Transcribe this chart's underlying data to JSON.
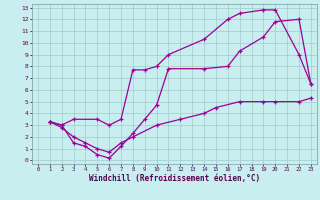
{
  "xlabel": "Windchill (Refroidissement éolien,°C)",
  "bg_color": "#c8eef0",
  "grid_color": "#a0cccc",
  "line_color": "#990099",
  "xlim": [
    -0.5,
    23.5
  ],
  "ylim": [
    -0.3,
    13.3
  ],
  "xticks": [
    0,
    1,
    2,
    3,
    4,
    5,
    6,
    7,
    8,
    9,
    10,
    11,
    12,
    13,
    14,
    15,
    16,
    17,
    18,
    19,
    20,
    21,
    22,
    23
  ],
  "yticks": [
    0,
    1,
    2,
    3,
    4,
    5,
    6,
    7,
    8,
    9,
    10,
    11,
    12,
    13
  ],
  "line1_x": [
    1,
    2,
    3,
    4,
    5,
    6,
    7,
    8,
    9,
    10,
    11,
    14,
    16,
    17,
    19,
    20,
    22,
    23
  ],
  "line1_y": [
    3.3,
    3.0,
    1.5,
    1.2,
    0.5,
    0.2,
    1.2,
    2.3,
    3.5,
    4.7,
    7.8,
    7.8,
    8.0,
    9.3,
    10.5,
    11.8,
    12.0,
    6.5
  ],
  "line2_x": [
    1,
    2,
    3,
    5,
    6,
    7,
    8,
    9,
    10,
    11,
    14,
    16,
    17,
    19,
    20,
    22,
    23
  ],
  "line2_y": [
    3.3,
    3.0,
    3.5,
    3.5,
    3.0,
    3.5,
    7.7,
    7.7,
    8.0,
    9.0,
    10.3,
    12.0,
    12.5,
    12.8,
    12.8,
    9.0,
    6.5
  ],
  "line3_x": [
    1,
    2,
    3,
    4,
    5,
    6,
    7,
    8,
    10,
    12,
    14,
    15,
    17,
    19,
    20,
    22,
    23
  ],
  "line3_y": [
    3.3,
    2.8,
    2.0,
    1.5,
    1.0,
    0.7,
    1.5,
    2.0,
    3.0,
    3.5,
    4.0,
    4.5,
    5.0,
    5.0,
    5.0,
    5.0,
    5.3
  ]
}
